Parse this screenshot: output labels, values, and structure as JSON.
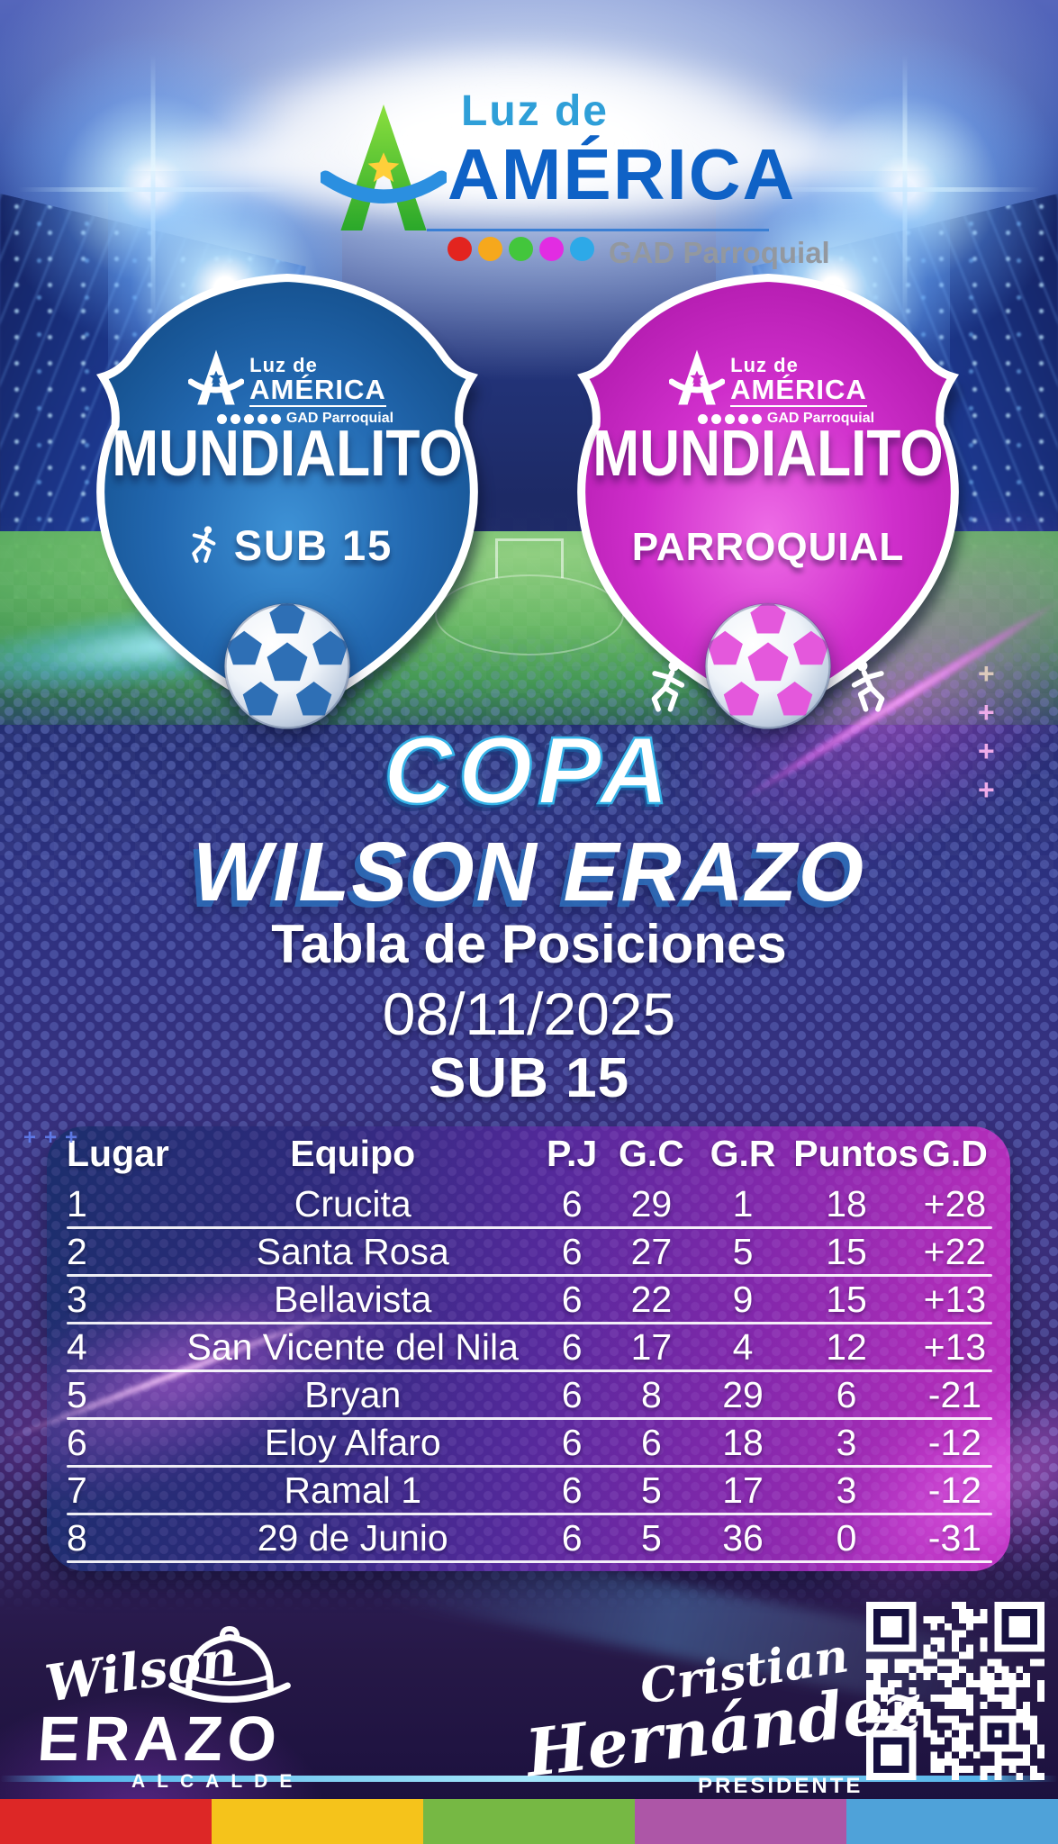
{
  "brand": {
    "luz_de": "Luz de",
    "america": "AMÉRICA",
    "gad": "GAD Parroquial"
  },
  "badges": {
    "left": {
      "luz_de": "Luz de",
      "america": "AMÉRICA",
      "gad": "GAD Parroquial",
      "title": "MUNDIALITO",
      "subtitle": "SUB 15"
    },
    "right": {
      "luz_de": "Luz de",
      "america": "AMÉRICA",
      "gad": "GAD Parroquial",
      "title": "MUNDIALITO",
      "subtitle": "PARROQUIAL"
    }
  },
  "titles": {
    "copa": "COPA",
    "cup_name": "WILSON ERAZO",
    "table": "Tabla de Posiciones",
    "date": "08/11/2025",
    "category": "SUB 15"
  },
  "standings": {
    "columns": [
      "Lugar",
      "Equipo",
      "P.J",
      "G.C",
      "G.R",
      "Puntos",
      "G.D"
    ],
    "rows": [
      [
        "1",
        "Crucita",
        "6",
        "29",
        "1",
        "18",
        "+28"
      ],
      [
        "2",
        "Santa Rosa",
        "6",
        "27",
        "5",
        "15",
        "+22"
      ],
      [
        "3",
        "Bellavista",
        "6",
        "22",
        "9",
        "15",
        "+13"
      ],
      [
        "4",
        "San Vicente del Nila",
        "6",
        "17",
        "4",
        "12",
        "+13"
      ],
      [
        "5",
        "Bryan",
        "6",
        "8",
        "29",
        "6",
        "-21"
      ],
      [
        "6",
        "Eloy Alfaro",
        "6",
        "6",
        "18",
        "3",
        "-12"
      ],
      [
        "7",
        "Ramal 1",
        "6",
        "5",
        "17",
        "3",
        "-12"
      ],
      [
        "8",
        "29 de Junio",
        "6",
        "5",
        "36",
        "0",
        "-31"
      ]
    ]
  },
  "footer": {
    "mayor_first": "Wilson",
    "mayor_last": "ERAZO",
    "mayor_role": "ALCALDE",
    "president_first": "Cristian",
    "president_last": "Hernández",
    "president_role": "PRESIDENTE"
  },
  "icons": {
    "a_mark": "letter-a-with-star-and-swoosh",
    "runner": "running-player",
    "ball": "soccer-ball",
    "hard_hat": "construction-helmet",
    "qr": "qr-code"
  },
  "colors": {
    "badge_left": "#1d63ab",
    "badge_right": "#c92fc6",
    "accent_cyan": "#36b3e8",
    "table_gradient": [
      "#1d2e6e",
      "#b32dba"
    ],
    "strips": [
      "#dd2726",
      "#f5c31b",
      "#76b844",
      "#ad56a7",
      "#4fa2d9"
    ],
    "logo_dots": [
      "#e3241f",
      "#f6a81c",
      "#43c63c",
      "#e22ce2",
      "#2da9e8"
    ],
    "ball_pent_left": "#2e6fb5",
    "ball_pent_right": "#e458dc"
  },
  "decor": {
    "plus_right": [
      "+",
      "+",
      "+",
      "+"
    ],
    "plus_left": [
      "+",
      "+",
      "+"
    ]
  }
}
